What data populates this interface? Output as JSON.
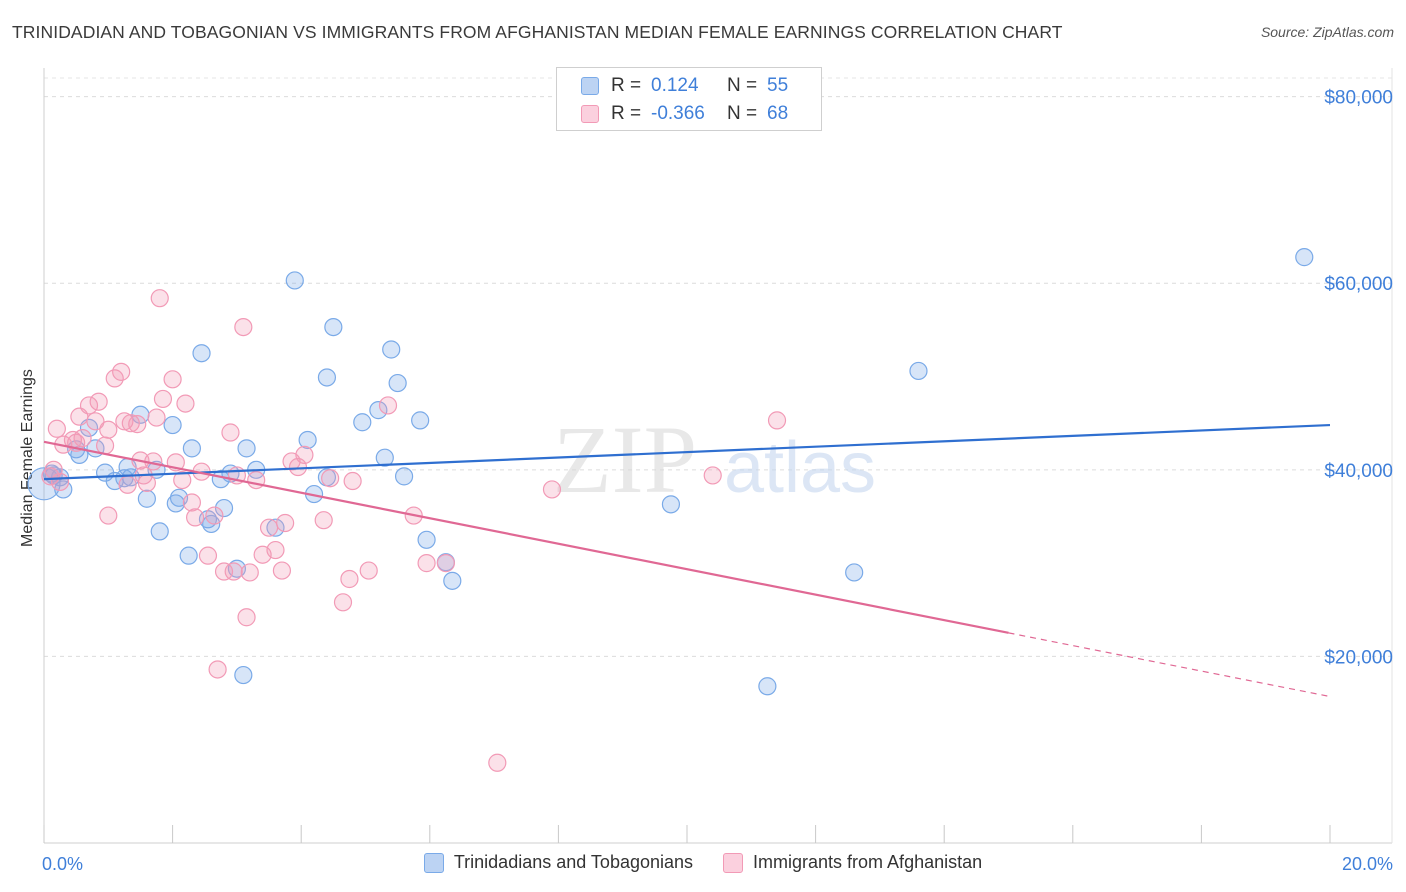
{
  "title": "TRINIDADIAN AND TOBAGONIAN VS IMMIGRANTS FROM AFGHANISTAN MEDIAN FEMALE EARNINGS CORRELATION CHART",
  "source": "Source: ZipAtlas.com",
  "watermark": {
    "zip": "ZIP",
    "atlas": "atlas"
  },
  "legend": {
    "r_label": "R =",
    "n_label": "N =",
    "series": [
      {
        "r": "0.124",
        "n": "55"
      },
      {
        "r": "-0.366",
        "n": "68"
      }
    ]
  },
  "chart_data": {
    "type": "scatter",
    "title": "TRINIDADIAN AND TOBAGONIAN VS IMMIGRANTS FROM AFGHANISTAN MEDIAN FEMALE EARNINGS CORRELATION CHART",
    "xlabel": "",
    "ylabel": "Median Female Earnings",
    "xlim": [
      0,
      20
    ],
    "ylim": [
      0,
      82000
    ],
    "x_tick_labels": [
      "0.0%",
      "20.0%"
    ],
    "y_ticks": [
      20000,
      40000,
      60000,
      80000
    ],
    "y_tick_labels": [
      "$20,000",
      "$40,000",
      "$60,000",
      "$80,000"
    ],
    "grid": true,
    "colors": {
      "blue": "#7aaae8",
      "blue_line": "#2f6fd0",
      "pink": "#f29ab6",
      "pink_line": "#e06894",
      "tick_text": "#3f7fd9"
    },
    "series": [
      {
        "name": "Trinidadians and Tobagonians",
        "trend": {
          "x": [
            0,
            20
          ],
          "y": [
            39000,
            44800
          ],
          "dashed_from": null
        },
        "points": [
          [
            0.0,
            38500
          ],
          [
            0.12,
            39600
          ],
          [
            0.25,
            39200
          ],
          [
            0.3,
            37900
          ],
          [
            0.5,
            42200
          ],
          [
            0.7,
            44500
          ],
          [
            0.8,
            42300
          ],
          [
            0.95,
            39700
          ],
          [
            1.1,
            38800
          ],
          [
            1.25,
            39100
          ],
          [
            1.35,
            39200
          ],
          [
            1.5,
            45900
          ],
          [
            1.6,
            36900
          ],
          [
            1.75,
            40000
          ],
          [
            1.8,
            33400
          ],
          [
            2.0,
            44800
          ],
          [
            2.05,
            36400
          ],
          [
            2.1,
            37000
          ],
          [
            2.25,
            30800
          ],
          [
            2.3,
            42300
          ],
          [
            2.45,
            52500
          ],
          [
            2.55,
            34700
          ],
          [
            2.6,
            34200
          ],
          [
            2.75,
            39000
          ],
          [
            2.9,
            39600
          ],
          [
            3.0,
            29400
          ],
          [
            3.1,
            18000
          ],
          [
            3.15,
            42300
          ],
          [
            3.3,
            40000
          ],
          [
            3.6,
            33800
          ],
          [
            3.9,
            60300
          ],
          [
            4.1,
            43200
          ],
          [
            4.2,
            37400
          ],
          [
            4.4,
            49900
          ],
          [
            4.5,
            55300
          ],
          [
            4.4,
            39200
          ],
          [
            4.95,
            45100
          ],
          [
            5.2,
            46400
          ],
          [
            5.3,
            41300
          ],
          [
            5.4,
            52900
          ],
          [
            5.5,
            49300
          ],
          [
            5.85,
            45300
          ],
          [
            5.6,
            39300
          ],
          [
            5.95,
            32500
          ],
          [
            6.25,
            30100
          ],
          [
            6.35,
            28100
          ],
          [
            9.75,
            36300
          ],
          [
            11.25,
            16800
          ],
          [
            12.6,
            29000
          ],
          [
            13.6,
            50600
          ],
          [
            19.6,
            62800
          ],
          [
            0.15,
            39400
          ],
          [
            0.55,
            41600
          ],
          [
            1.3,
            40300
          ],
          [
            2.8,
            35900
          ]
        ]
      },
      {
        "name": "Immigrants from Afghanistan",
        "trend": {
          "x": [
            0,
            20
          ],
          "y": [
            43000,
            15700
          ],
          "dashed_from": 15
        },
        "points": [
          [
            0.1,
            39300
          ],
          [
            0.15,
            40000
          ],
          [
            0.2,
            44400
          ],
          [
            0.3,
            42700
          ],
          [
            0.45,
            43200
          ],
          [
            0.55,
            45700
          ],
          [
            0.6,
            43400
          ],
          [
            0.7,
            46900
          ],
          [
            0.8,
            45200
          ],
          [
            0.85,
            47300
          ],
          [
            0.95,
            42600
          ],
          [
            1.0,
            35100
          ],
          [
            1.1,
            49800
          ],
          [
            1.2,
            50500
          ],
          [
            1.25,
            45200
          ],
          [
            1.3,
            38400
          ],
          [
            1.35,
            45000
          ],
          [
            1.45,
            44900
          ],
          [
            1.5,
            41000
          ],
          [
            1.55,
            39400
          ],
          [
            1.6,
            38600
          ],
          [
            1.7,
            40900
          ],
          [
            1.75,
            45600
          ],
          [
            1.8,
            58400
          ],
          [
            1.85,
            47600
          ],
          [
            2.0,
            49700
          ],
          [
            2.05,
            40800
          ],
          [
            2.15,
            38900
          ],
          [
            2.2,
            47100
          ],
          [
            2.3,
            36500
          ],
          [
            2.35,
            34900
          ],
          [
            2.45,
            39800
          ],
          [
            2.55,
            30800
          ],
          [
            2.65,
            35100
          ],
          [
            2.7,
            18600
          ],
          [
            2.8,
            29100
          ],
          [
            2.9,
            44000
          ],
          [
            3.0,
            39400
          ],
          [
            3.1,
            55300
          ],
          [
            3.15,
            24200
          ],
          [
            3.2,
            29000
          ],
          [
            3.3,
            38900
          ],
          [
            3.4,
            30900
          ],
          [
            3.5,
            33800
          ],
          [
            3.6,
            31400
          ],
          [
            3.7,
            29200
          ],
          [
            3.75,
            34300
          ],
          [
            3.85,
            40900
          ],
          [
            3.95,
            40300
          ],
          [
            4.05,
            41600
          ],
          [
            4.35,
            34600
          ],
          [
            4.45,
            39100
          ],
          [
            4.65,
            25800
          ],
          [
            4.75,
            28300
          ],
          [
            4.8,
            38800
          ],
          [
            5.05,
            29200
          ],
          [
            5.35,
            46900
          ],
          [
            5.75,
            35100
          ],
          [
            5.95,
            30000
          ],
          [
            6.25,
            30000
          ],
          [
            7.05,
            8600
          ],
          [
            7.9,
            37900
          ],
          [
            10.4,
            39400
          ],
          [
            11.4,
            45300
          ],
          [
            0.25,
            38700
          ],
          [
            0.5,
            42900
          ],
          [
            1.0,
            44300
          ],
          [
            2.95,
            29100
          ]
        ]
      }
    ]
  },
  "bottom_legend": [
    "Trinidadians and Tobagonians",
    "Immigrants from Afghanistan"
  ]
}
